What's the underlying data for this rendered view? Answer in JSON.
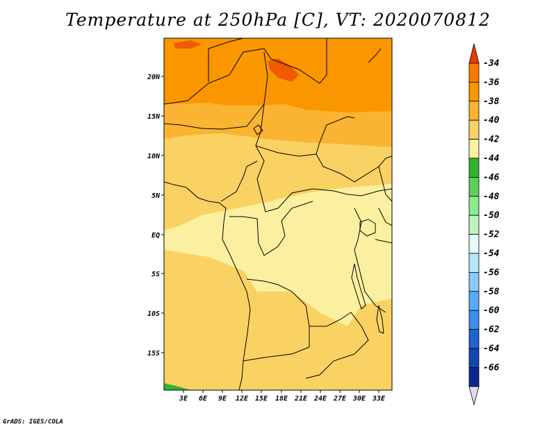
{
  "title": "Temperature at 250hPa [C], VT: 2020070812",
  "credit": "GrADS: IGES/COLA",
  "map": {
    "lat_labels": [
      "20N",
      "15N",
      "10N",
      "5N",
      "EQ",
      "5S",
      "10S",
      "15S"
    ],
    "lon_labels": [
      "3E",
      "6E",
      "9E",
      "12E",
      "15E",
      "18E",
      "21E",
      "24E",
      "27E",
      "30E",
      "33E"
    ]
  },
  "colorbar": {
    "labels": [
      "-34",
      "-36",
      "-38",
      "-40",
      "-42",
      "-44",
      "-46",
      "-48",
      "-50",
      "-52",
      "-54",
      "-56",
      "-58",
      "-60",
      "-62",
      "-64",
      "-66"
    ],
    "colors": [
      "#f05a00",
      "#fa7800",
      "#fa9600",
      "#fab432",
      "#fad264",
      "#faf0a0",
      "#32b432",
      "#5ad25a",
      "#8ceb8c",
      "#bef5be",
      "#e6fafa",
      "#b4e6fa",
      "#8cc8fa",
      "#5aaafa",
      "#3c8cf0",
      "#1e64d2",
      "#1446b4",
      "#0a288c",
      "#000064"
    ],
    "top_arrow_color": "#e63c00",
    "bottom_arrow_color": "#dcdcf0"
  },
  "field_colors": {
    "t_minus36": "#f05a00",
    "t_minus38": "#fa9600",
    "t_minus40": "#fab432",
    "t_minus42": "#fad264",
    "t_minus44": "#faf0a0",
    "t_minus46": "#32b432"
  }
}
